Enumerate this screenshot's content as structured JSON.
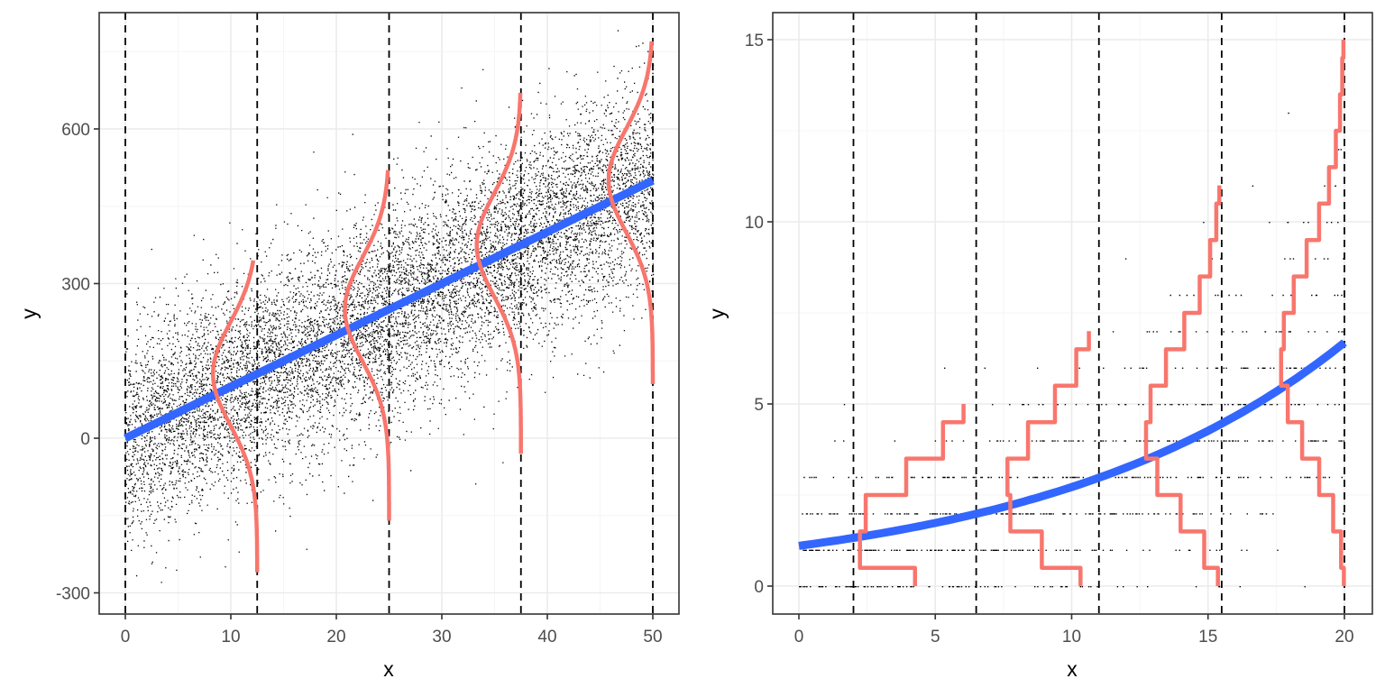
{
  "chart_data": [
    {
      "type": "scatter",
      "title": "",
      "xlabel": "x",
      "ylabel": "y",
      "xlim": [
        -2.5,
        52.5
      ],
      "ylim": [
        -335,
        830
      ],
      "x_ticks": [
        0,
        10,
        20,
        30,
        40,
        50
      ],
      "y_ticks": [
        -300,
        0,
        300,
        600
      ],
      "grid": true,
      "description": "Linear regression with Gaussian errors: ~10000 points scattered around y = 10x with sd ~100, fitted blue line, and normal density curves at vertical dashed lines",
      "scatter": {
        "n_points": 10000,
        "model": "y = 10*x + N(0, 100)",
        "x_range": [
          0,
          50
        ],
        "color": "#000000"
      },
      "fit_line": {
        "color": "#3366FF",
        "points": [
          [
            0,
            0
          ],
          [
            50,
            500
          ]
        ]
      },
      "vlines": [
        0,
        12.5,
        25,
        37.5,
        50
      ],
      "density_curves": [
        {
          "x_anchor": 12.5,
          "mean": 125,
          "y_range": [
            -260,
            345
          ],
          "color": "#F8766D"
        },
        {
          "x_anchor": 25,
          "mean": 250,
          "y_range": [
            -160,
            520
          ],
          "color": "#F8766D"
        },
        {
          "x_anchor": 37.5,
          "mean": 375,
          "y_range": [
            -30,
            670
          ],
          "color": "#F8766D"
        },
        {
          "x_anchor": 50,
          "mean": 500,
          "y_range": [
            105,
            770
          ],
          "color": "#F8766D"
        }
      ]
    },
    {
      "type": "scatter",
      "title": "",
      "xlabel": "x",
      "ylabel": "y",
      "xlim": [
        -1,
        21
      ],
      "ylim": [
        -0.75,
        15.75
      ],
      "x_ticks": [
        0,
        5,
        10,
        15,
        20
      ],
      "y_ticks": [
        0,
        5,
        10,
        15
      ],
      "grid": true,
      "description": "Poisson regression: integer-valued counts y vs x in [0,20], fitted blue exponential mean curve, and Poisson pmf step curves at vertical dashed lines",
      "scatter": {
        "model": "y ~ Poisson(exp(0.1 + 0.09x))",
        "x_range": [
          0,
          20
        ],
        "y_values": "integers 0-15",
        "color": "#000000"
      },
      "fit_line": {
        "color": "#3366FF",
        "points": [
          [
            0,
            1.1
          ],
          [
            2,
            1.25
          ],
          [
            4,
            1.5
          ],
          [
            6.5,
            1.9
          ],
          [
            8,
            2.3
          ],
          [
            10,
            2.7
          ],
          [
            11,
            3.1
          ],
          [
            13,
            3.8
          ],
          [
            15.5,
            4.7
          ],
          [
            18,
            5.8
          ],
          [
            20,
            6.7
          ]
        ]
      },
      "vlines": [
        2,
        6.5,
        11,
        15.5,
        20
      ],
      "pmf_step_curves": [
        {
          "x_anchor": 6.5,
          "mean": 1.9,
          "y_max": 5,
          "color": "#F8766D"
        },
        {
          "x_anchor": 11,
          "mean": 3.1,
          "y_max": 7,
          "color": "#F8766D"
        },
        {
          "x_anchor": 15.5,
          "mean": 4.7,
          "y_max": 11,
          "color": "#F8766D"
        },
        {
          "x_anchor": 20,
          "mean": 6.7,
          "y_max": 15,
          "color": "#F8766D"
        }
      ]
    }
  ],
  "colors": {
    "points": "#000000",
    "fit": "#3366FF",
    "density": "#F8766D",
    "grid_major": "#EBEBEB",
    "grid_minor": "#F5F5F5",
    "panel_border": "#333333",
    "tick_text": "#4D4D4D"
  },
  "labels": {
    "left": {
      "xlabel": "x",
      "ylabel": "y",
      "x_ticks": [
        "0",
        "10",
        "20",
        "30",
        "40",
        "50"
      ],
      "y_ticks": [
        "-300",
        "0",
        "300",
        "600"
      ]
    },
    "right": {
      "xlabel": "x",
      "ylabel": "y",
      "x_ticks": [
        "0",
        "5",
        "10",
        "15",
        "20"
      ],
      "y_ticks": [
        "0",
        "5",
        "10",
        "15"
      ]
    }
  }
}
